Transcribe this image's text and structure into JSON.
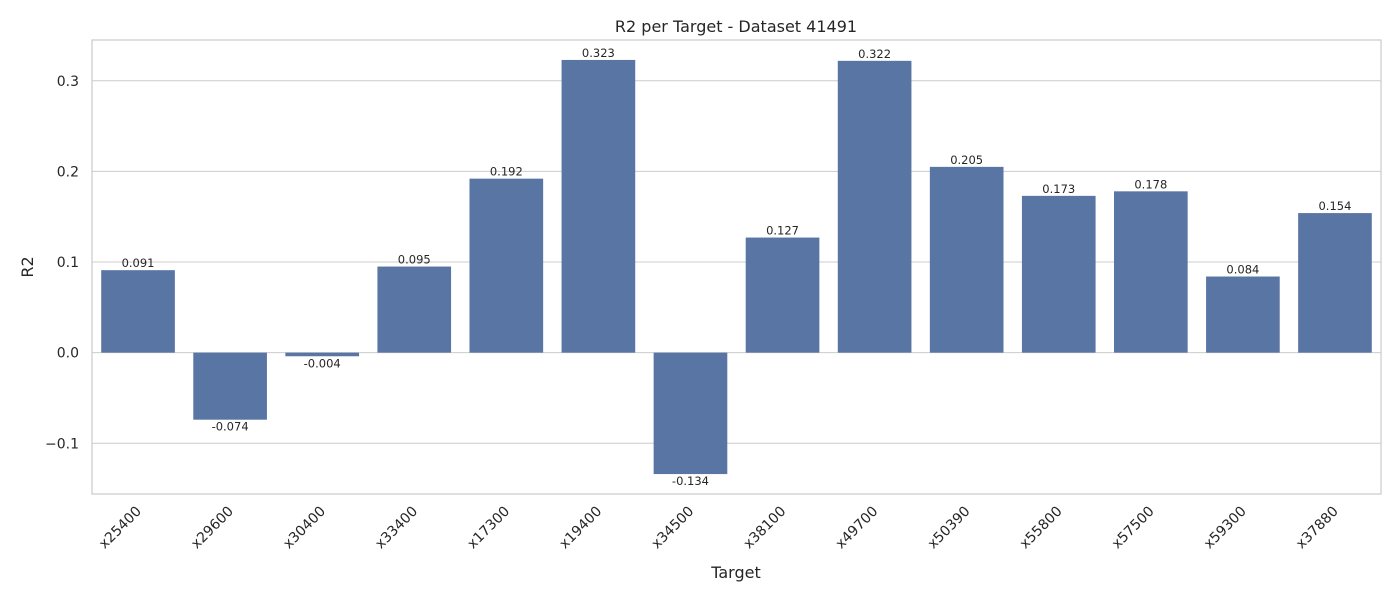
{
  "chart_data": {
    "type": "bar",
    "title": "R2 per Target - Dataset 41491",
    "xlabel": "Target",
    "ylabel": "R2",
    "categories": [
      "x25400",
      "x29600",
      "x30400",
      "x33400",
      "x17300",
      "x19400",
      "x34500",
      "x38100",
      "x49700",
      "x50390",
      "x55800",
      "x57500",
      "x59300",
      "x37880"
    ],
    "values": [
      0.091,
      -0.074,
      -0.004,
      0.095,
      0.192,
      0.323,
      -0.134,
      0.127,
      0.322,
      0.205,
      0.173,
      0.178,
      0.084,
      0.154
    ],
    "data_labels": [
      "0.091",
      "-0.074",
      "-0.004",
      "0.095",
      "0.192",
      "0.323",
      "-0.134",
      "0.127",
      "0.322",
      "0.205",
      "0.173",
      "0.178",
      "0.084",
      "0.154"
    ],
    "ylim": [
      -0.156,
      0.345
    ],
    "yticks": [
      -0.1,
      0.0,
      0.1,
      0.2,
      0.3
    ],
    "ytick_labels": [
      "−0.1",
      "0.0",
      "0.1",
      "0.2",
      "0.3"
    ],
    "grid": true,
    "bar_color": "#5975a4",
    "grid_color": "#cccccc"
  }
}
